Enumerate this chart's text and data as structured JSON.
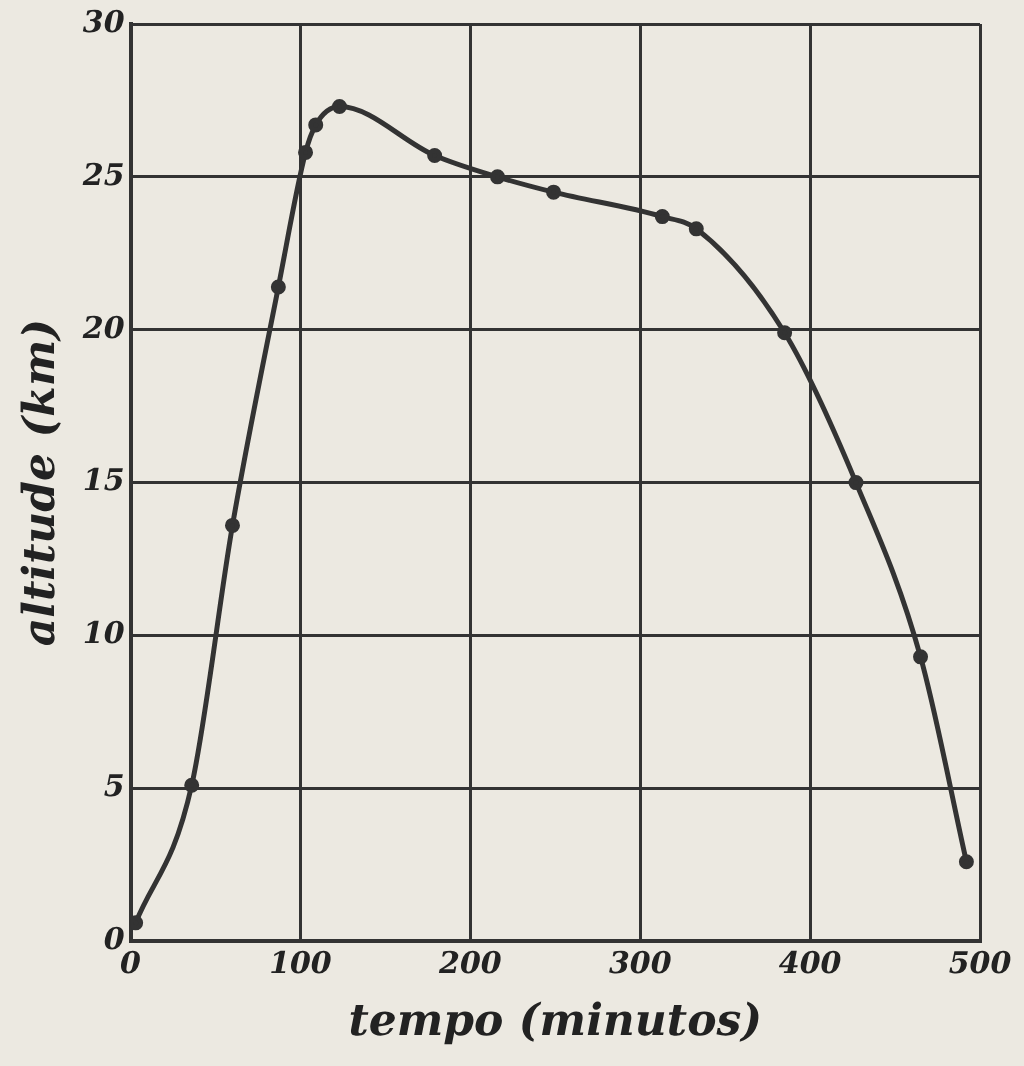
{
  "chart_data": {
    "type": "line",
    "xlabel": "tempo (minutos)",
    "ylabel": "altitude (km)",
    "x": [
      3,
      36,
      60,
      87,
      103,
      109,
      123,
      179,
      216,
      249,
      313,
      333,
      385,
      427,
      465,
      492
    ],
    "series": [
      {
        "color": "#333333",
        "values": [
          0.6,
          5.1,
          13.6,
          21.4,
          25.8,
          26.7,
          27.3,
          25.7,
          25,
          24.5,
          23.7,
          23.3,
          19.9,
          15,
          9.3,
          2.6
        ]
      }
    ],
    "xlim": [
      0,
      500
    ],
    "xticks": [
      0,
      100,
      200,
      300,
      400,
      500
    ],
    "ylim": [
      0,
      30
    ],
    "yticks": [
      0,
      5,
      10,
      15,
      20,
      25,
      30
    ],
    "grid": true,
    "legend": false,
    "marker": "circle",
    "line_style": "solid"
  }
}
